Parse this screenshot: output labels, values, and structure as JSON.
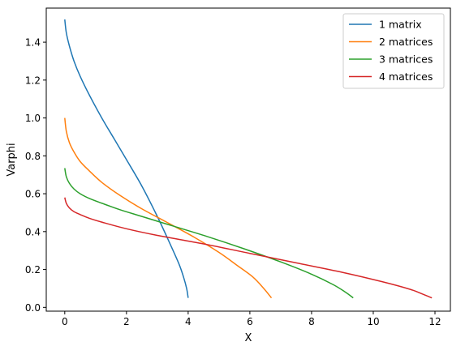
{
  "chart_data": {
    "type": "line",
    "title": "",
    "xlabel": "X",
    "ylabel": "Varphi",
    "xlim": [
      -0.6,
      12.5
    ],
    "ylim": [
      -0.02,
      1.58
    ],
    "xticks": [
      0,
      2,
      4,
      6,
      8,
      10,
      12
    ],
    "yticks": [
      0.0,
      0.2,
      0.4,
      0.6,
      0.8,
      1.0,
      1.2,
      1.4
    ],
    "grid": false,
    "legend_position": "top-right",
    "series": [
      {
        "name": "1 matrix",
        "color": "#1f77b4",
        "x": [
          0,
          0.05,
          0.15,
          0.3,
          0.5,
          0.8,
          1.2,
          1.6,
          2.0,
          2.5,
          3.0,
          3.4,
          3.7,
          3.85,
          3.95,
          4.0
        ],
        "y": [
          1.52,
          1.45,
          1.38,
          1.3,
          1.22,
          1.12,
          1.0,
          0.89,
          0.78,
          0.64,
          0.48,
          0.34,
          0.23,
          0.16,
          0.1,
          0.05
        ]
      },
      {
        "name": "2 matrices",
        "color": "#ff7f0e",
        "x": [
          0,
          0.05,
          0.15,
          0.3,
          0.5,
          0.8,
          1.2,
          1.8,
          2.5,
          3.3,
          4.2,
          5.0,
          5.6,
          6.1,
          6.45,
          6.7
        ],
        "y": [
          1.0,
          0.93,
          0.87,
          0.82,
          0.77,
          0.72,
          0.66,
          0.59,
          0.52,
          0.45,
          0.37,
          0.29,
          0.22,
          0.16,
          0.1,
          0.05
        ]
      },
      {
        "name": "3 matrices",
        "color": "#2ca02c",
        "x": [
          0,
          0.05,
          0.15,
          0.3,
          0.5,
          0.8,
          1.2,
          1.8,
          2.5,
          3.5,
          4.6,
          5.8,
          7.0,
          8.0,
          8.7,
          9.1,
          9.35
        ],
        "y": [
          0.735,
          0.69,
          0.655,
          0.625,
          0.6,
          0.575,
          0.55,
          0.515,
          0.48,
          0.43,
          0.375,
          0.31,
          0.24,
          0.175,
          0.12,
          0.08,
          0.05
        ]
      },
      {
        "name": "4 matrices",
        "color": "#d62728",
        "x": [
          0,
          0.05,
          0.15,
          0.3,
          0.5,
          0.8,
          1.2,
          2.0,
          3.0,
          4.5,
          6.0,
          7.5,
          9.0,
          10.3,
          11.2,
          11.6,
          11.9
        ],
        "y": [
          0.58,
          0.55,
          0.525,
          0.505,
          0.49,
          0.47,
          0.45,
          0.415,
          0.38,
          0.335,
          0.285,
          0.235,
          0.185,
          0.135,
          0.095,
          0.07,
          0.05
        ]
      }
    ]
  }
}
